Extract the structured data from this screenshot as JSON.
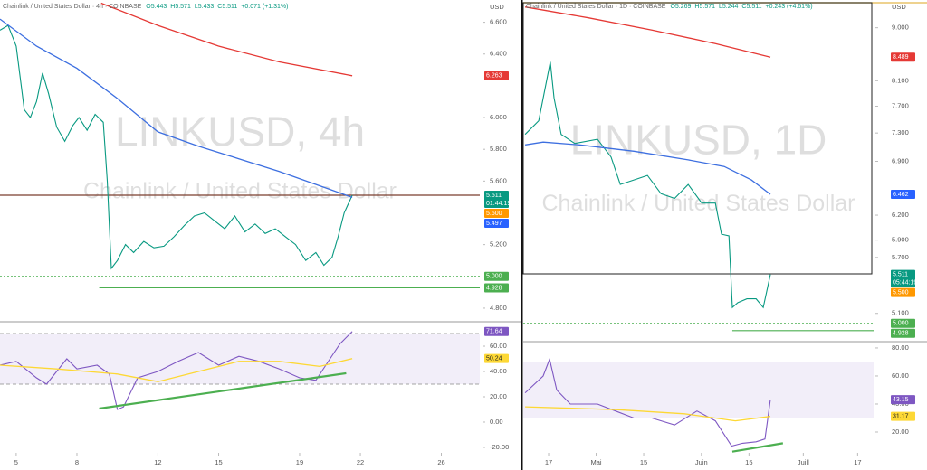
{
  "chart_data": [
    {
      "type": "line",
      "title": "Chainlink / United States Dollar · 4h · COINBASE",
      "ohlc": [
        "O5.443",
        "H5.571",
        "L5.433",
        "C5.511",
        "+0.071 (+1.31%)"
      ],
      "watermark": [
        "LINKUSD, 4h",
        "Chainlink / United States Dollar"
      ],
      "unit": "USD",
      "xlim": [
        4.2,
        27.9
      ],
      "ylim": [
        4.72,
        6.74
      ],
      "yticks": [
        {
          "value": 6.6,
          "label": "6.600"
        },
        {
          "value": 6.4,
          "label": "6.400"
        },
        {
          "value": 6.0,
          "label": "6.000"
        },
        {
          "value": 5.8,
          "label": "5.800"
        },
        {
          "value": 5.6,
          "label": "5.600"
        },
        {
          "value": 5.2,
          "label": "5.200"
        },
        {
          "value": 4.8,
          "label": "4.800"
        }
      ],
      "series": [
        {
          "color": "#089981",
          "x": [
            4.2,
            4.6,
            5.0,
            5.4,
            5.7,
            6.0,
            6.3,
            6.6,
            7.0,
            7.4,
            7.8,
            8.1,
            8.5,
            8.9,
            9.3,
            9.5,
            9.7,
            10.0,
            10.4,
            10.8,
            11.3,
            11.8,
            12.3,
            12.8,
            13.3,
            13.8,
            14.3,
            14.8,
            15.3,
            15.8,
            16.3,
            16.8,
            17.3,
            17.8,
            18.3,
            18.8,
            19.3,
            19.8,
            20.2,
            20.6,
            20.9,
            21.2,
            21.6
          ],
          "values": [
            6.55,
            6.58,
            6.45,
            6.05,
            6.0,
            6.1,
            6.28,
            6.15,
            5.94,
            5.85,
            5.95,
            6.0,
            5.92,
            6.02,
            5.97,
            5.6,
            5.05,
            5.1,
            5.2,
            5.15,
            5.22,
            5.18,
            5.19,
            5.25,
            5.32,
            5.38,
            5.4,
            5.35,
            5.3,
            5.38,
            5.28,
            5.33,
            5.27,
            5.3,
            5.25,
            5.2,
            5.1,
            5.15,
            5.07,
            5.12,
            5.25,
            5.4,
            5.511
          ]
        },
        {
          "color": "#3d6fe0",
          "x": [
            4.2,
            6,
            8,
            10,
            12,
            14,
            16,
            18,
            20,
            21.6
          ],
          "values": [
            6.62,
            6.45,
            6.31,
            6.12,
            5.91,
            5.82,
            5.74,
            5.66,
            5.57,
            5.497
          ]
        },
        {
          "color": "#e53935",
          "x": [
            9.2,
            12,
            15,
            18,
            21.6
          ],
          "values": [
            6.72,
            6.58,
            6.45,
            6.35,
            6.263
          ]
        }
      ],
      "levels": [
        {
          "value": 5.511,
          "color": "#7b3f2f",
          "style": "solid"
        },
        {
          "value": 5.0,
          "color": "#4caf50",
          "style": "dotted"
        },
        {
          "value": 4.928,
          "color": "#4caf50",
          "style": "solid",
          "x0": 9.1
        }
      ],
      "markers": [
        {
          "value": 6.263,
          "label": "6.263",
          "color": "#e53935"
        },
        {
          "value": 5.511,
          "label": "5.511",
          "color": "#089981",
          "countdown": "01:44:19"
        },
        {
          "value": 5.5,
          "label": "5.500",
          "color": "#ff9800"
        },
        {
          "value": 5.497,
          "label": "5.497",
          "color": "#2962ff"
        },
        {
          "value": 5.0,
          "label": "5.000",
          "color": "#4caf50"
        },
        {
          "value": 4.928,
          "label": "4.928",
          "color": "#4caf50"
        }
      ]
    },
    {
      "type": "line",
      "xlim": [
        4.2,
        27.9
      ],
      "xticks": [
        5,
        8,
        12,
        15,
        19,
        22,
        26
      ],
      "ylim": [
        -23.6,
        78.6
      ],
      "yticks": [
        {
          "value": 60,
          "label": "60.00"
        },
        {
          "value": 40,
          "label": "40.00"
        },
        {
          "value": 20,
          "label": "20.00"
        },
        {
          "value": 0,
          "label": "0.00"
        },
        {
          "value": -20,
          "label": "-20.00"
        }
      ],
      "band": [
        30,
        70
      ],
      "series": [
        {
          "color": "#7e57c2",
          "x": [
            4.2,
            5,
            6,
            6.5,
            7.5,
            8,
            9,
            9.6,
            10,
            10.3,
            11,
            12,
            13,
            14,
            15,
            16,
            17,
            18,
            19,
            19.8,
            20.5,
            21,
            21.6
          ],
          "values": [
            45,
            48,
            35,
            30,
            50,
            42,
            45,
            38,
            10,
            12,
            35,
            40,
            48,
            55,
            45,
            52,
            48,
            42,
            35,
            33,
            50,
            62,
            71.64
          ]
        },
        {
          "color": "#fdd835",
          "x": [
            4.2,
            7,
            10,
            12,
            14,
            16,
            18,
            20,
            21.6
          ],
          "values": [
            45,
            42,
            38,
            32,
            40,
            48,
            48,
            44,
            50.24
          ]
        }
      ],
      "trendline": {
        "color": "#4caf50",
        "x": [
          9.1,
          21.3
        ],
        "values": [
          10.7,
          38.6
        ]
      },
      "markers": [
        {
          "value": 71.64,
          "label": "71.64",
          "color": "#7e57c2"
        },
        {
          "value": 50.24,
          "label": "50.24",
          "color": "#fdd835"
        }
      ]
    },
    {
      "type": "line",
      "title": "Chainlink / United States Dollar · 1D · COINBASE",
      "ohlc": [
        "O5.269",
        "H5.571",
        "L5.244",
        "C5.511",
        "+0.243 (+4.61%)"
      ],
      "watermark": [
        "LINKUSD, 1D",
        "Chainlink / United States Dollar"
      ],
      "unit": "USD",
      "log": true,
      "xlim": [
        -7.47,
        95.7
      ],
      "ylim": [
        4.83,
        9.51
      ],
      "yticks": [
        {
          "value": 9.0,
          "label": "9.000"
        },
        {
          "value": 8.1,
          "label": "8.100"
        },
        {
          "value": 7.7,
          "label": "7.700"
        },
        {
          "value": 7.3,
          "label": "7.300"
        },
        {
          "value": 6.9,
          "label": "6.900"
        },
        {
          "value": 6.2,
          "label": "6.200"
        },
        {
          "value": 5.9,
          "label": "5.900"
        },
        {
          "value": 5.7,
          "label": "5.700"
        },
        {
          "value": 5.1,
          "label": "5.100"
        }
      ],
      "series": [
        {
          "color": "#089981",
          "x": [
            -6.9,
            -2.9,
            -0.8,
            0.5,
            1.6,
            3.7,
            7.7,
            14.4,
            18.4,
            21.1,
            25.1,
            29.1,
            33.1,
            37.1,
            41.1,
            45.1,
            49.1,
            50.9,
            53.1,
            54.1,
            55.7,
            58.4,
            61.1,
            63.2,
            65.3
          ],
          "values": [
            7.28,
            7.48,
            8.04,
            8.41,
            7.83,
            7.28,
            7.15,
            7.21,
            6.96,
            6.59,
            6.65,
            6.71,
            6.47,
            6.41,
            6.59,
            6.35,
            6.35,
            5.97,
            5.95,
            5.16,
            5.21,
            5.25,
            5.25,
            5.16,
            5.511
          ]
        },
        {
          "color": "#3d6fe0",
          "x": [
            -6.9,
            -1.6,
            9.1,
            25.1,
            41.1,
            51.7,
            59.7,
            65.3
          ],
          "values": [
            7.13,
            7.17,
            7.13,
            7.04,
            6.92,
            6.83,
            6.65,
            6.462
          ]
        },
        {
          "color": "#e53935",
          "x": [
            -6.9,
            11.7,
            30.4,
            49.1,
            65.3
          ],
          "values": [
            9.38,
            9.18,
            8.96,
            8.72,
            8.489
          ]
        }
      ],
      "levels": [
        {
          "value": 5.0,
          "color": "#4caf50",
          "style": "dotted"
        },
        {
          "value": 4.928,
          "color": "#4caf50",
          "style": "solid",
          "x0": 54.1
        }
      ],
      "markers": [
        {
          "value": 8.489,
          "label": "8.489",
          "color": "#e53935"
        },
        {
          "value": 6.462,
          "label": "6.462",
          "color": "#2962ff"
        },
        {
          "value": 5.511,
          "label": "5.511",
          "color": "#089981",
          "countdown": "05:44:19"
        },
        {
          "value": 5.5,
          "label": "5.500",
          "color": "#ff9800"
        },
        {
          "value": 5.0,
          "label": "5.000",
          "color": "#4caf50"
        },
        {
          "value": 4.928,
          "label": "4.928",
          "color": "#4caf50"
        }
      ]
    },
    {
      "type": "line",
      "xlim": [
        -7.47,
        95.7
      ],
      "xticks": [
        {
          "value": 0,
          "label": "17"
        },
        {
          "value": 14,
          "label": "Mai"
        },
        {
          "value": 28,
          "label": "15"
        },
        {
          "value": 45,
          "label": "Juin"
        },
        {
          "value": 59,
          "label": "15"
        },
        {
          "value": 75,
          "label": "Juill"
        },
        {
          "value": 91,
          "label": "17"
        }
      ],
      "ylim": [
        5.8,
        83.2
      ],
      "yticks": [
        {
          "value": 80,
          "label": "80.00"
        },
        {
          "value": 60,
          "label": "60.00"
        },
        {
          "value": 40,
          "label": "40.00"
        },
        {
          "value": 20,
          "label": "20.00"
        }
      ],
      "band": [
        30,
        70
      ],
      "series": [
        {
          "color": "#7e57c2",
          "x": [
            -6.9,
            -1.6,
            0.3,
            2.4,
            6.4,
            14.4,
            19.7,
            25.1,
            30.4,
            37.1,
            43.7,
            49.1,
            53.9,
            57.1,
            61.1,
            63.7,
            65.3
          ],
          "values": [
            48,
            60,
            72,
            50,
            40,
            40,
            35,
            30,
            30,
            25,
            35,
            28,
            10,
            12,
            13,
            15,
            43.15
          ]
        },
        {
          "color": "#fdd835",
          "x": [
            -6.9,
            20,
            40,
            55,
            65.3
          ],
          "values": [
            38,
            36,
            33,
            28,
            31.17
          ]
        }
      ],
      "trendline": {
        "color": "#4caf50",
        "x": [
          54.1,
          69
        ],
        "values": [
          6,
          12
        ]
      },
      "markers": [
        {
          "value": 43.15,
          "label": "43.15",
          "color": "#7e57c2"
        },
        {
          "value": 31.17,
          "label": "31.17",
          "color": "#fdd835"
        }
      ]
    }
  ]
}
